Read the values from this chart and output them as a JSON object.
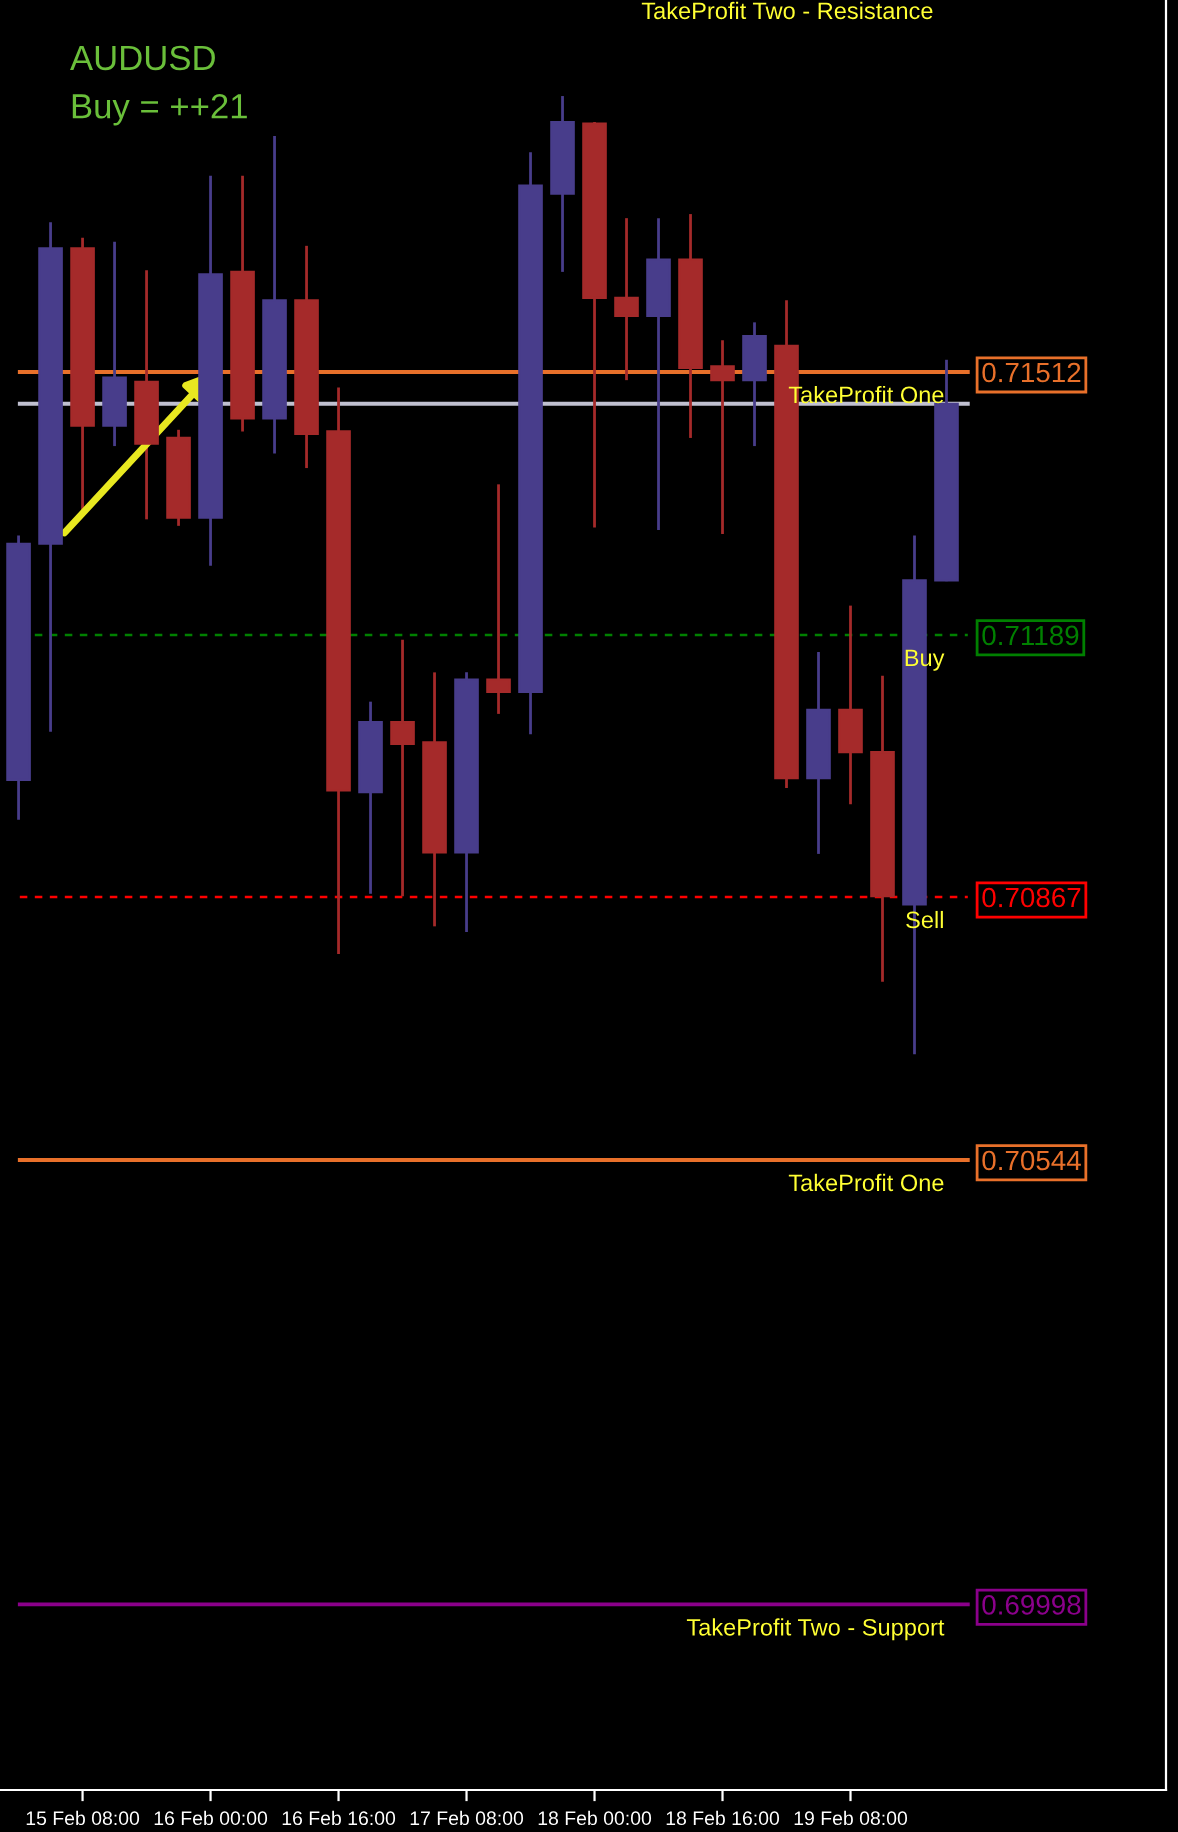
{
  "chart_data": {
    "type": "candlestick",
    "title": "AUDUSD",
    "subtitle": "Buy = ++21",
    "categories": [
      null,
      null,
      "15 Feb 08:00",
      null,
      null,
      null,
      "16 Feb 00:00",
      null,
      null,
      null,
      "16 Feb 16:00",
      null,
      null,
      null,
      "17 Feb 08:00",
      null,
      null,
      null,
      "18 Feb 00:00",
      null,
      null,
      null,
      "18 Feb 16:00",
      null,
      null,
      null,
      "19 Feb 08:00",
      null,
      null,
      null
    ],
    "ohlc": [
      [
        0.71011,
        0.71311,
        0.70962,
        0.71301
      ],
      [
        0.71301,
        0.71696,
        0.7107,
        0.71664
      ],
      [
        0.71664,
        0.71677,
        0.71338,
        0.71446
      ],
      [
        0.71446,
        0.71672,
        0.71421,
        0.71505
      ],
      [
        0.715,
        0.71637,
        0.71331,
        0.71424
      ],
      [
        0.71431,
        0.71441,
        0.71323,
        0.71333
      ],
      [
        0.71333,
        0.71753,
        0.71274,
        0.71632
      ],
      [
        0.71635,
        0.71753,
        0.71439,
        0.71455
      ],
      [
        0.71455,
        0.71802,
        0.71412,
        0.716
      ],
      [
        0.716,
        0.71667,
        0.71394,
        0.71436
      ],
      [
        0.71439,
        0.71493,
        0.70797,
        0.70998
      ],
      [
        0.70996,
        0.71107,
        0.70871,
        0.71082
      ],
      [
        0.71082,
        0.71183,
        0.70868,
        0.71055
      ],
      [
        0.71057,
        0.71143,
        0.70831,
        0.70922
      ],
      [
        0.70922,
        0.71143,
        0.70824,
        0.71134
      ],
      [
        0.71134,
        0.71374,
        0.71092,
        0.71119
      ],
      [
        0.71119,
        0.71782,
        0.71067,
        0.71741
      ],
      [
        0.71731,
        0.71851,
        0.71635,
        0.71819
      ],
      [
        0.71817,
        0.71819,
        0.71321,
        0.71603
      ],
      [
        0.71603,
        0.71701,
        0.71502,
        0.71581
      ],
      [
        0.71581,
        0.71701,
        0.71318,
        0.7165
      ],
      [
        0.7165,
        0.71706,
        0.71431,
        0.71517
      ],
      [
        0.71519,
        0.71551,
        0.71313,
        0.71502
      ],
      [
        0.71502,
        0.71573,
        0.71421,
        0.71556
      ],
      [
        0.71544,
        0.716,
        0.71001,
        0.71013
      ],
      [
        0.71013,
        0.71168,
        0.7092,
        0.71097
      ],
      [
        0.71097,
        0.71225,
        0.70981,
        0.71045
      ],
      [
        0.71045,
        0.71139,
        0.70763,
        0.70868
      ],
      [
        0.70858,
        0.71311,
        0.70674,
        0.71256
      ],
      [
        0.71256,
        0.71527,
        0.71255,
        0.71473
      ]
    ],
    "colors": [
      "#483d8b",
      "#483d8b",
      "#a52a2a",
      "#483d8b",
      "#a52a2a",
      "#a52a2a",
      "#483d8b",
      "#a52a2a",
      "#483d8b",
      "#a52a2a",
      "#a52a2a",
      "#483d8b",
      "#a52a2a",
      "#a52a2a",
      "#483d8b",
      "#a52a2a",
      "#483d8b",
      "#483d8b",
      "#a52a2a",
      "#a52a2a",
      "#483d8b",
      "#a52a2a",
      "#a52a2a",
      "#483d8b",
      "#a52a2a",
      "#483d8b",
      "#a52a2a",
      "#a52a2a",
      "#483d8b",
      "#483d8b"
    ],
    "ylim": [
      0.6977,
      0.71969
    ],
    "yticks": [
      0.69998,
      0.70544,
      0.70867,
      0.71189,
      0.71512
    ],
    "grid": false,
    "legend": false,
    "ref_lines": [
      {
        "axis": "y",
        "value": 0.71512,
        "label": "TakeProfit One",
        "color": "#e8702a",
        "line_style": "solid"
      },
      {
        "axis": "y",
        "value": 0.71473,
        "label": null,
        "color": "#c0c0d0",
        "line_style": "solid"
      },
      {
        "axis": "y",
        "value": 0.71189,
        "label": "Buy",
        "color": "#008000",
        "line_style": "dashed"
      },
      {
        "axis": "y",
        "value": 0.70867,
        "label": "Sell",
        "color": "#ff0000",
        "line_style": "dashed"
      },
      {
        "axis": "y",
        "value": 0.70544,
        "label": "TakeProfit One",
        "color": "#e8702a",
        "line_style": "solid"
      },
      {
        "axis": "y",
        "value": 0.69998,
        "label": "TakeProfit Two - Support",
        "color": "#8b008b",
        "line_style": "solid"
      }
    ],
    "annotations": [
      "TakeProfit Two - Resistance"
    ]
  }
}
